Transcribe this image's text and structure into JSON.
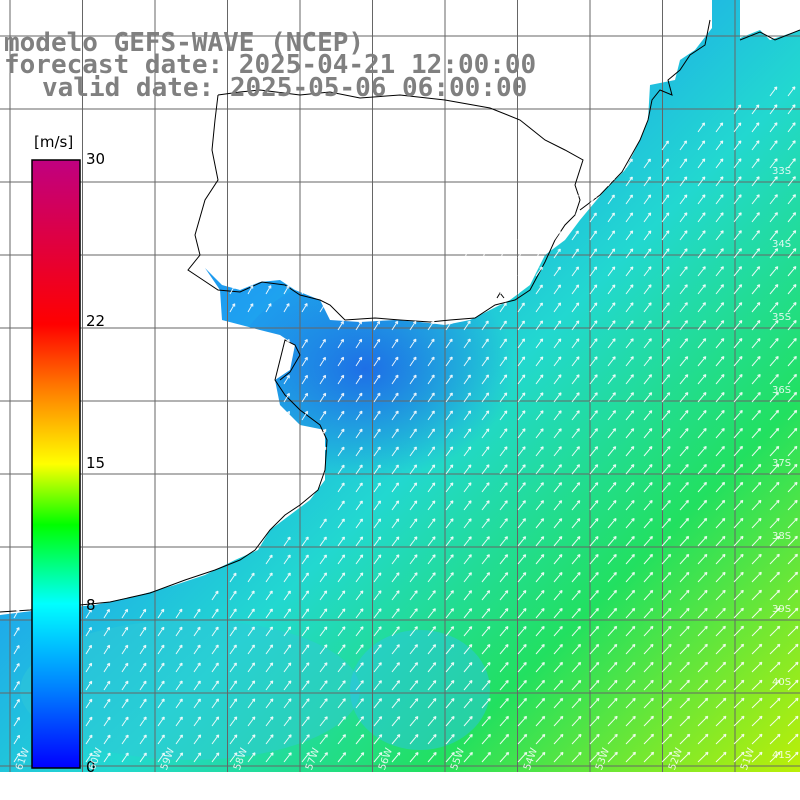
{
  "header": {
    "model_line": "modelo GEFS-WAVE (NCEP)",
    "forecast_line": "forecast date: 2025-04-21 12:00:00",
    "valid_line": "valid date: 2025-05-06 06:00:00"
  },
  "colorbar": {
    "unit_label": "[m/s]",
    "ticks": [
      {
        "value": 30,
        "label": "30"
      },
      {
        "value": 22,
        "label": "22"
      },
      {
        "value": 15,
        "label": "15"
      },
      {
        "value": 8,
        "label": "8"
      },
      {
        "value": 0,
        "label": "0"
      }
    ],
    "min": 0,
    "max": 30
  },
  "map": {
    "lat_labels": [
      "33S",
      "34S",
      "35S",
      "36S",
      "37S",
      "38S",
      "39S",
      "40S",
      "41S"
    ],
    "lon_labels": [
      "61W",
      "60W",
      "59W",
      "58W",
      "57W",
      "56W",
      "55W",
      "54W",
      "53W",
      "52W",
      "51W"
    ],
    "colors": {
      "land": "#ffffff",
      "grid": "#666666",
      "coast": "#000000",
      "arrow": "#ffffff"
    }
  }
}
